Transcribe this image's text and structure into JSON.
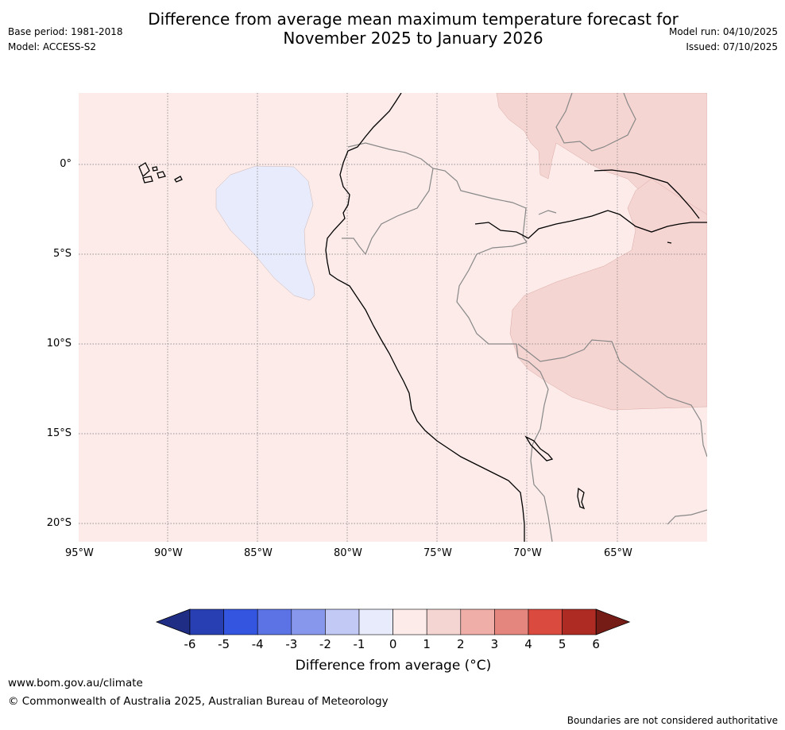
{
  "title": {
    "line1": "Difference from average mean maximum temperature forecast for",
    "line2": "November 2025 to January 2026"
  },
  "meta": {
    "base_period": "Base period: 1981-2018",
    "model": "Model: ACCESS-S2",
    "model_run": "Model run: 04/10/2025",
    "issued": "Issued: 07/10/2025"
  },
  "axes": {
    "lon_ticks": [
      "95°W",
      "90°W",
      "85°W",
      "80°W",
      "75°W",
      "70°W",
      "65°W"
    ],
    "lat_ticks": [
      "0°",
      "5°S",
      "10°S",
      "15°S",
      "20°S"
    ]
  },
  "colorbar": {
    "labels": [
      "-6",
      "-5",
      "-4",
      "-3",
      "-2",
      "-1",
      "0",
      "1",
      "2",
      "3",
      "4",
      "5",
      "6"
    ],
    "colors": [
      "#1f2d85",
      "#273fb2",
      "#3355e0",
      "#5c73e6",
      "#8797ec",
      "#c2c9f5",
      "#e8ebfb",
      "#fcebe9",
      "#f5d5d2",
      "#efaea8",
      "#e5867e",
      "#db4a3f",
      "#ae2b24",
      "#751c17"
    ],
    "title": "Difference from average (°C)"
  },
  "footer": {
    "url": "www.bom.gov.au/climate",
    "copyright": "© Commonwealth of Australia 2025, Australian Bureau of Meteorology",
    "disclaimer": "Boundaries are not considered authoritative"
  }
}
